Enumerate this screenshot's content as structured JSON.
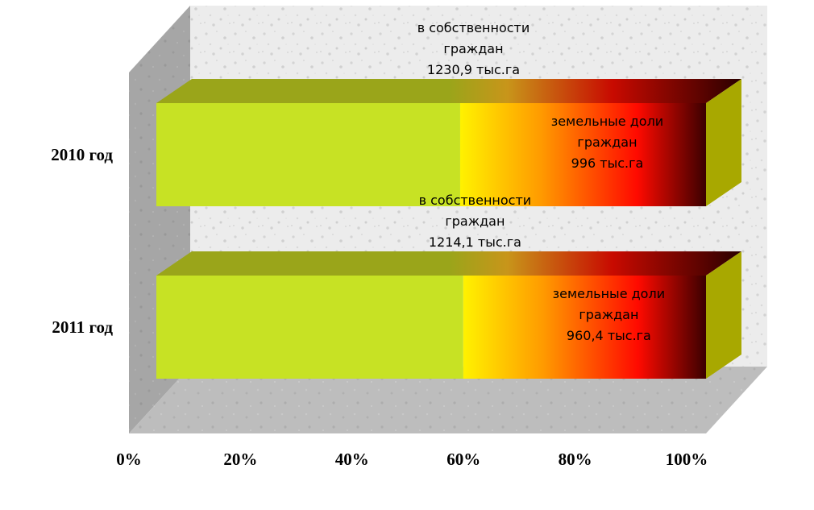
{
  "chart_data": {
    "type": "bar",
    "orientation": "horizontal",
    "stacked": "percent",
    "three_d": true,
    "title": "",
    "xlabel": "",
    "ylabel": "",
    "categories": [
      "2010 год",
      "2011 год"
    ],
    "series": [
      {
        "values": [
          1230.9,
          1214.1
        ],
        "color": "#c7e224",
        "labels": [
          [
            "в собственности",
            "граждан",
            "1230,9 тыс.га"
          ],
          [
            "в собственности",
            "граждан",
            "1214,1 тыс.га"
          ]
        ]
      },
      {
        "values": [
          996,
          960.4
        ],
        "color_gradient": [
          "#fff200",
          "#ff9a00",
          "#ff0a00",
          "#3a0000"
        ],
        "labels": [
          [
            "земельные доли",
            "граждан",
            "996 тыс.га"
          ],
          [
            "земельные доли",
            "граждан",
            "960,4 тыс.га"
          ]
        ]
      }
    ],
    "x_ticks": [
      "0%",
      "20%",
      "40%",
      "60%",
      "80%",
      "100%"
    ],
    "xlim": [
      0,
      100
    ],
    "grid": false,
    "legend": "none"
  }
}
